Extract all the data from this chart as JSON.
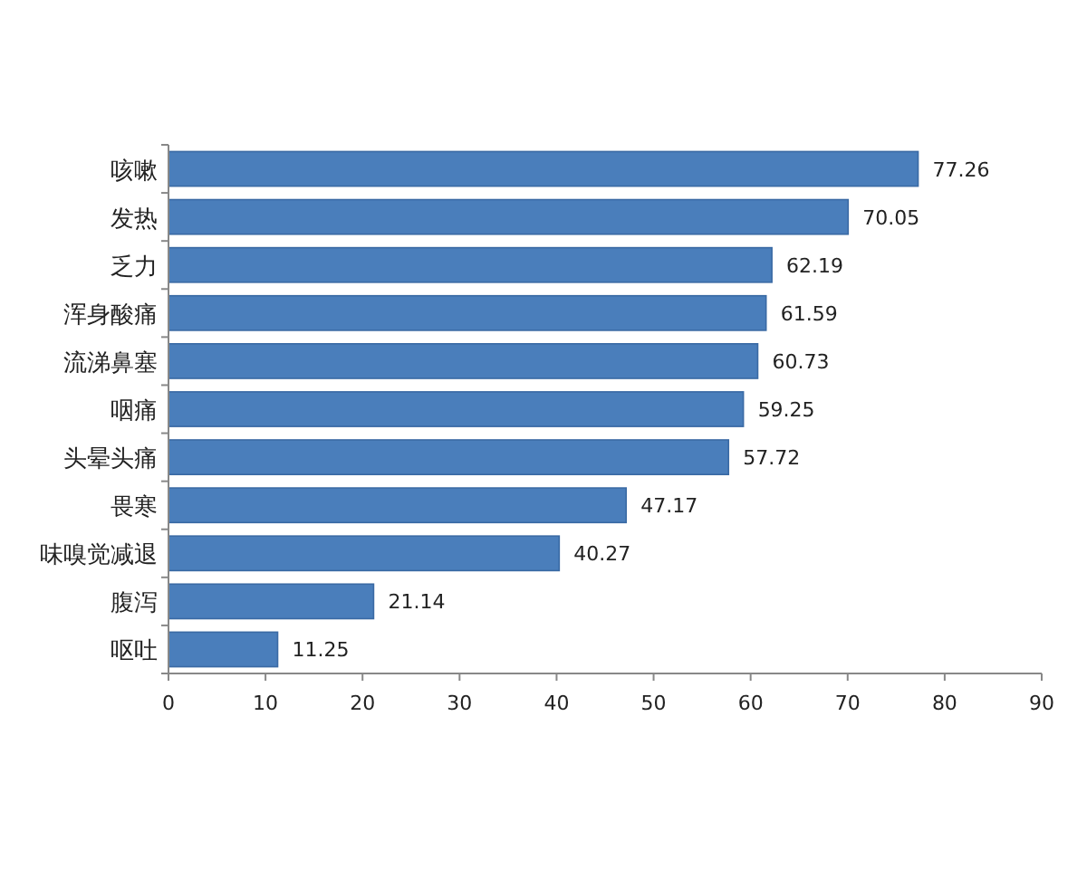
{
  "chart_data": {
    "type": "bar",
    "orientation": "horizontal",
    "categories": [
      "咳嗽",
      "发热",
      "乏力",
      "浑身酸痛",
      "流涕鼻塞",
      "咽痛",
      "头晕头痛",
      "畏寒",
      "味嗅觉减退",
      "腹泻",
      "呕吐"
    ],
    "values": [
      77.26,
      70.05,
      62.19,
      61.59,
      60.73,
      59.25,
      57.72,
      47.17,
      40.27,
      21.14,
      11.25
    ],
    "color": "#4a7ebb",
    "xlim": [
      0,
      90
    ],
    "xticks": [
      0,
      10,
      20,
      30,
      40,
      50,
      60,
      70,
      80,
      90
    ],
    "data_labels": true
  }
}
